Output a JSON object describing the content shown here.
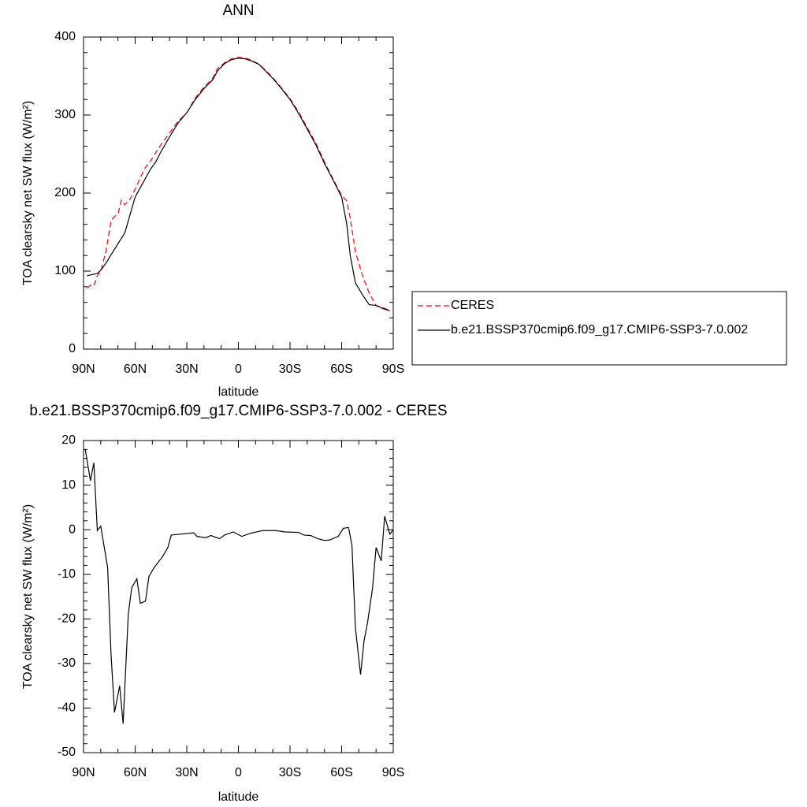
{
  "chart_data": [
    {
      "type": "line",
      "title": "ANN",
      "x_label": "latitude",
      "y_label": "TOA clearsky net SW flux (W/m²)",
      "xlim": [
        90,
        -90
      ],
      "xticks": [
        {
          "value": 90,
          "label": "90N"
        },
        {
          "value": 60,
          "label": "60N"
        },
        {
          "value": 30,
          "label": "30N"
        },
        0,
        {
          "value": -30,
          "label": "30S"
        },
        {
          "value": -60,
          "label": "60S"
        },
        {
          "value": -90,
          "label": "90S"
        }
      ],
      "ylim": [
        0,
        400
      ],
      "yticks": [
        0,
        100,
        200,
        300,
        400
      ],
      "x": [
        88,
        86,
        84,
        82,
        80,
        77,
        74,
        72,
        70,
        68,
        66,
        63,
        60,
        57,
        54,
        51,
        48,
        45,
        40,
        35,
        30,
        25,
        20,
        15,
        12,
        8,
        4,
        0,
        -4,
        -8,
        -12,
        -16,
        -20,
        -25,
        -30,
        -35,
        -40,
        -45,
        -50,
        -55,
        -60,
        -63,
        -65,
        -68,
        -72,
        -76,
        -80,
        -84,
        -88
      ],
      "series": [
        {
          "name": "CERES",
          "color": "#ff0000",
          "dashed": true,
          "values": [
            78,
            82,
            81,
            94,
            100,
            125,
            165,
            170,
            173,
            191,
            185,
            192,
            205,
            220,
            233,
            241,
            252,
            262,
            277,
            292,
            303,
            322,
            336,
            347,
            360,
            367,
            372,
            374,
            373,
            370,
            365,
            357,
            348,
            335,
            321,
            304,
            284,
            264,
            240,
            218,
            197,
            190,
            168,
            125,
            95,
            72,
            56,
            53,
            50
          ]
        },
        {
          "name": "b.e21.BSSP370cmip6.f09_g17.CMIP6-SSP3-7.0.002",
          "color": "#000000",
          "dashed": false,
          "values": [
            94,
            95,
            96,
            97,
            101,
            110,
            121,
            128,
            135,
            142,
            149,
            172,
            195,
            207,
            219,
            231,
            240,
            253,
            272,
            290,
            303,
            320,
            334,
            345,
            357,
            366,
            371,
            373,
            372,
            369,
            365,
            356,
            347,
            334,
            320,
            302,
            282,
            262,
            238,
            217,
            195,
            160,
            120,
            85,
            70,
            57,
            56,
            52,
            49
          ]
        }
      ],
      "legend": "right"
    },
    {
      "type": "line",
      "title": "b.e21.BSSP370cmip6.f09_g17.CMIP6-SSP3-7.0.002 - CERES",
      "x_label": "latitude",
      "y_label": "TOA clearsky net SW flux (W/m²)",
      "xlim": [
        90,
        -90
      ],
      "xticks": [
        {
          "value": 90,
          "label": "90N"
        },
        {
          "value": 60,
          "label": "60N"
        },
        {
          "value": 30,
          "label": "30N"
        },
        0,
        {
          "value": -30,
          "label": "30S"
        },
        {
          "value": -60,
          "label": "60S"
        },
        {
          "value": -90,
          "label": "90S"
        }
      ],
      "ylim": [
        -50,
        20
      ],
      "yticks": [
        -50,
        -40,
        -30,
        -20,
        -10,
        0,
        10,
        20
      ],
      "x": [
        89,
        86,
        84,
        82,
        80,
        76,
        74,
        72,
        69,
        67,
        64,
        62,
        59,
        57,
        54,
        52,
        49,
        44,
        41,
        39,
        34,
        26,
        24,
        19,
        16,
        11,
        8,
        3,
        -2,
        -7,
        -14,
        -22,
        -27,
        -35,
        -38,
        -42,
        -46,
        -50,
        -53,
        -58,
        -61,
        -64,
        -66,
        -68,
        -71,
        -73,
        -75,
        -78,
        -80,
        -83,
        -85,
        -88,
        -90
      ],
      "values": [
        18,
        11,
        15,
        -0.2,
        0.8,
        -8.5,
        -28,
        -41,
        -35,
        -43.5,
        -19,
        -13,
        -11,
        -16.5,
        -16,
        -10.5,
        -8.5,
        -6,
        -4,
        -1.2,
        -1,
        -0.7,
        -1.5,
        -1.8,
        -1.3,
        -2,
        -1.2,
        -0.5,
        -1.5,
        -0.8,
        -0.2,
        -0.2,
        -0.5,
        -0.6,
        -1.2,
        -1.3,
        -2,
        -2.4,
        -2.3,
        -1.5,
        0.3,
        0.5,
        -3.5,
        -22,
        -32.5,
        -25,
        -21,
        -13,
        -4,
        -7,
        3,
        -1,
        0
      ],
      "color": "#000000"
    }
  ]
}
